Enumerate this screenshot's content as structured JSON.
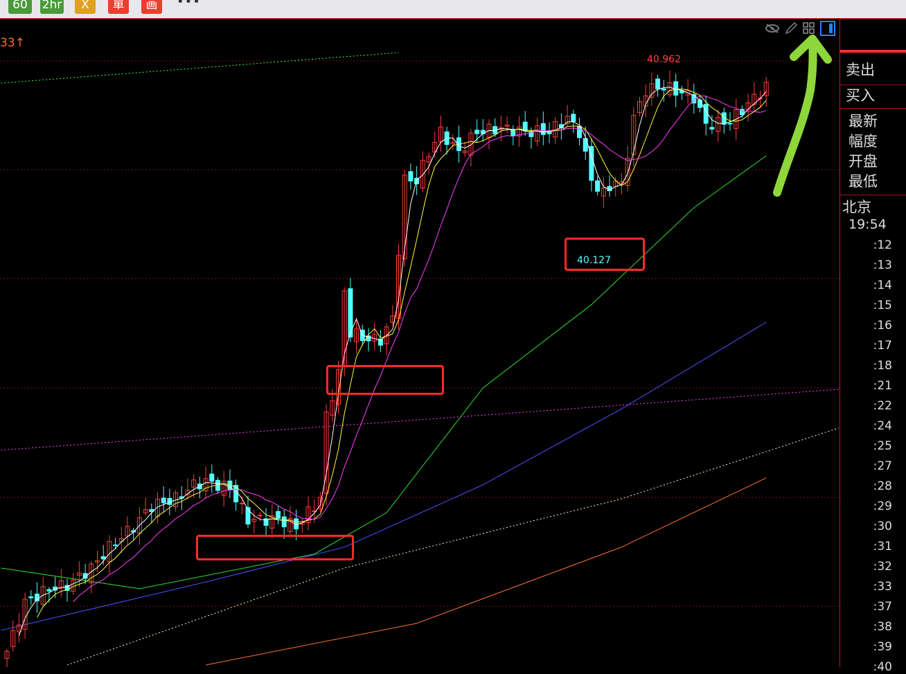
{
  "toolbar": {
    "buttons": [
      {
        "label": "60",
        "color": "#4a9a3a"
      },
      {
        "label": "2hr",
        "color": "#4a9a3a"
      },
      {
        "label": "X",
        "color": "#e0a020"
      },
      {
        "label": "單",
        "color": "#e84030"
      },
      {
        "label": "画",
        "color": "#e84030"
      }
    ],
    "more": "•••"
  },
  "chart": {
    "top_left_value": "33↑",
    "high_label": "40.962",
    "low_label": "40.127",
    "colors": {
      "up": "#ff3b3b",
      "down": "#54ffff",
      "ma5": "#ffffff",
      "ma10": "#ffff40",
      "ma20": "#ff40ff",
      "grid": "#7a1010"
    },
    "close_path": [
      [
        0,
        38.502
      ],
      [
        3,
        38.704
      ],
      [
        7,
        38.762
      ],
      [
        10,
        38.776
      ],
      [
        14,
        38.848
      ],
      [
        17,
        38.934
      ],
      [
        21,
        39.021
      ],
      [
        24,
        39.107
      ],
      [
        28,
        39.136
      ],
      [
        31,
        39.194
      ],
      [
        33,
        39.208
      ],
      [
        37,
        39.179
      ],
      [
        40,
        39.05
      ],
      [
        45,
        39.05
      ],
      [
        48,
        39.021
      ],
      [
        52,
        39.136
      ],
      [
        53,
        39.482
      ],
      [
        55,
        39.654
      ],
      [
        56,
        40.0
      ],
      [
        57,
        39.827
      ],
      [
        60,
        39.798
      ],
      [
        62,
        39.798
      ],
      [
        64,
        39.885
      ],
      [
        66,
        40.461
      ],
      [
        68,
        40.461
      ],
      [
        70,
        40.576
      ],
      [
        72,
        40.662
      ],
      [
        75,
        40.576
      ],
      [
        78,
        40.662
      ],
      [
        82,
        40.677
      ],
      [
        86,
        40.662
      ],
      [
        90,
        40.662
      ],
      [
        93,
        40.72
      ],
      [
        95,
        40.662
      ],
      [
        97,
        40.461
      ],
      [
        99,
        40.403
      ],
      [
        101,
        40.461
      ],
      [
        102,
        40.432
      ],
      [
        104,
        40.72
      ],
      [
        106,
        40.835
      ],
      [
        109,
        40.85
      ],
      [
        114,
        40.806
      ],
      [
        116,
        40.691
      ],
      [
        120,
        40.706
      ],
      [
        123,
        40.778
      ],
      [
        126,
        40.85
      ]
    ],
    "long_lines": [
      {
        "color": "#30e030",
        "style": "solid",
        "points": [
          [
            -1,
            38.848
          ],
          [
            22,
            38.762
          ],
          [
            51,
            38.906
          ],
          [
            63,
            39.078
          ],
          [
            79,
            39.597
          ],
          [
            97,
            39.943
          ],
          [
            114,
            40.346
          ],
          [
            126,
            40.562
          ]
        ]
      },
      {
        "color": "#5050ff",
        "style": "solid",
        "points": [
          [
            -1,
            38.589
          ],
          [
            33,
            38.79
          ],
          [
            56,
            38.935
          ],
          [
            79,
            39.194
          ],
          [
            102,
            39.51
          ],
          [
            126,
            39.87
          ]
        ]
      },
      {
        "color": "#ff7030",
        "style": "solid",
        "points": [
          [
            33,
            38.445
          ],
          [
            68,
            38.618
          ],
          [
            102,
            38.935
          ],
          [
            126,
            39.223
          ]
        ]
      },
      {
        "color": "#ffffc0",
        "style": "dotted",
        "points": [
          [
            10,
            38.445
          ],
          [
            56,
            38.848
          ],
          [
            102,
            39.136
          ],
          [
            138,
            39.43
          ]
        ]
      },
      {
        "color": "#ff40ff",
        "style": "dotted",
        "points": [
          [
            -1,
            39.338
          ],
          [
            138,
            39.591
          ]
        ]
      },
      {
        "color": "#40ff40",
        "style": "dotted",
        "points": [
          [
            -1,
            40.864
          ],
          [
            65,
            40.991
          ]
        ]
      }
    ]
  },
  "side": {
    "sell": "卖出",
    "buy": "买入",
    "fields": [
      "最新",
      "幅度",
      "开盘",
      "最低"
    ],
    "city": "北京",
    "time": "19:54",
    "ticks": [
      ":12",
      ":13",
      ":14",
      ":15",
      ":16",
      ":17",
      ":18",
      ":21",
      ":22",
      ":24",
      ":25",
      ":27",
      ":28",
      ":29",
      ":30",
      ":31",
      ":32",
      ":33",
      ":37",
      ":38",
      ":39",
      ":40"
    ]
  },
  "icons": [
    "eye-hide-icon",
    "pencil-icon",
    "grid-icon",
    "panel-toggle-icon"
  ]
}
